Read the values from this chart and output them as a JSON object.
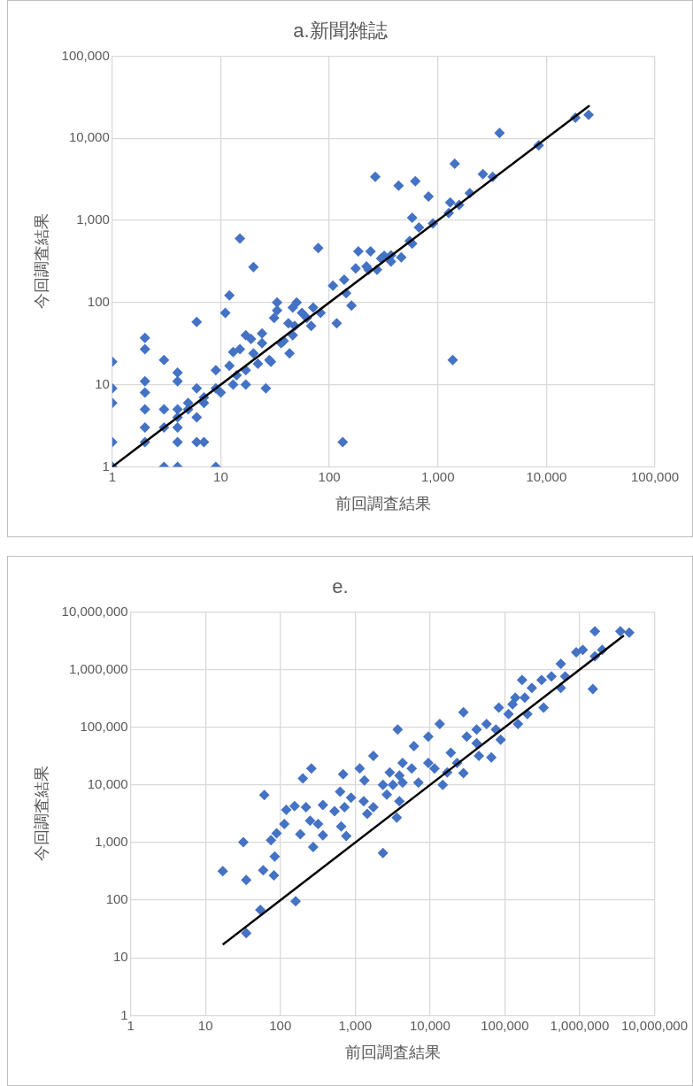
{
  "chart_data": [
    {
      "type": "scatter",
      "title": "a.新聞雑誌",
      "xlabel": "前回調査結果",
      "ylabel": "今回調査結果",
      "log": "xy",
      "grid": true,
      "marker": "diamond",
      "xlim": [
        1,
        100000
      ],
      "ylim": [
        1,
        100000
      ],
      "xticks": [
        1,
        10,
        100,
        {
          "value": 1000,
          "label": "1,000"
        },
        {
          "value": 10000,
          "label": "10,000"
        },
        {
          "value": 100000,
          "label": "100,000"
        }
      ],
      "yticks": [
        1,
        10,
        100,
        {
          "value": 1000,
          "label": "1,000"
        },
        {
          "value": 10000,
          "label": "10,000"
        },
        {
          "value": 100000,
          "label": "100,000"
        }
      ],
      "series": [
        {
          "color": "#4472c4",
          "x": [
            1,
            1,
            1,
            1,
            1,
            1,
            2,
            2,
            2,
            2,
            2,
            2,
            2,
            3,
            4,
            9,
            3,
            3,
            3,
            4,
            4,
            4,
            4,
            4,
            6,
            7,
            6,
            5,
            6,
            6,
            7,
            9,
            9,
            10,
            11,
            12,
            15,
            20,
            13,
            13,
            17,
            17,
            26,
            20,
            24,
            22,
            29,
            33,
            33,
            38,
            43,
            50,
            56,
            48,
            68,
            83,
            117,
            108,
            79,
            160,
            175,
            240,
            265,
            133,
            143,
            230,
            320,
            435,
            620,
            820,
            1430,
            3700,
            1370,
            8500,
            18500,
            24500,
            2600,
            3200,
            1970,
            1570,
            1300,
            1260,
            900,
            670,
            580,
            550,
            580,
            460,
            370,
            300,
            275,
            137,
            185,
            220,
            370,
            12,
            15,
            19,
            24,
            31,
            42,
            46,
            62,
            71,
            14,
            17,
            28,
            36,
            46,
            7,
            5,
            4
          ],
          "values": [
            1,
            2,
            6,
            9,
            19,
            1,
            2,
            3,
            5,
            8,
            11,
            27,
            37,
            1,
            1,
            1,
            5,
            3,
            20,
            2,
            3,
            5,
            14,
            11,
            2,
            2,
            4,
            6,
            58,
            9,
            6,
            15,
            9,
            8,
            75,
            122,
            600,
            270,
            10,
            25,
            10,
            40,
            9,
            24,
            32,
            18,
            19,
            100,
            80,
            34,
            24,
            100,
            75,
            52,
            52,
            75,
            56,
            160,
            460,
            92,
            260,
            420,
            3400,
            2,
            130,
            250,
            370,
            2650,
            3000,
            1950,
            4900,
            11600,
            20,
            8200,
            17800,
            19300,
            3650,
            3400,
            2150,
            1540,
            1650,
            1230,
            915,
            820,
            1080,
            560,
            520,
            355,
            375,
            345,
            250,
            190,
            420,
            275,
            315,
            17,
            27,
            36,
            42,
            65,
            56,
            87,
            65,
            87,
            13,
            15,
            20,
            32,
            40,
            7,
            5,
            4
          ]
        },
        {
          "type": "line",
          "marker": "none",
          "color": "#000000",
          "x": [
            1,
            25000
          ],
          "values": [
            1,
            25000
          ]
        }
      ]
    },
    {
      "type": "scatter",
      "title": "e.",
      "xlabel": "前回調査結果",
      "ylabel": "今回調査結果",
      "log": "xy",
      "grid": true,
      "marker": "diamond",
      "xlim": [
        1,
        10000000
      ],
      "ylim": [
        1,
        10000000
      ],
      "xticks": [
        1,
        10,
        100,
        {
          "value": 1000,
          "label": "1,000"
        },
        {
          "value": 10000,
          "label": "10,000"
        },
        {
          "value": 100000,
          "label": "100,000"
        },
        {
          "value": 1000000,
          "label": "1,000,000"
        },
        {
          "value": 10000000,
          "label": "10,000,000"
        }
      ],
      "yticks": [
        1,
        10,
        100,
        {
          "value": 1000,
          "label": "1,000"
        },
        {
          "value": 10000,
          "label": "10,000"
        },
        {
          "value": 100000,
          "label": "100,000"
        },
        {
          "value": 1000000,
          "label": "1,000,000"
        },
        {
          "value": 10000000,
          "label": "10,000,000"
        }
      ],
      "series": [
        {
          "color": "#4472c4",
          "x": [
            17,
            35,
            35,
            32,
            54,
            59,
            82,
            84,
            61,
            75,
            89,
            113,
            120,
            155,
            160,
            185,
            200,
            260,
            220,
            275,
            250,
            320,
            370,
            370,
            530,
            690,
            630,
            720,
            650,
            760,
            880,
            1150,
            1330,
            1450,
            1750,
            1750,
            2350,
            3700,
            3600,
            2900,
            2650,
            1300,
            4300,
            4300,
            2350,
            3900,
            6100,
            9500,
            13500,
            14800,
            9500,
            5700,
            3900,
            3200,
            7000,
            11500,
            19000,
            17000,
            28000,
            28000,
            23000,
            31000,
            42000,
            45000,
            66000,
            42000,
            57000,
            83000,
            88000,
            76000,
            112000,
            138000,
            150000,
            170000,
            185000,
            230000,
            310000,
            330000,
            200000,
            420000,
            560000,
            560000,
            640000,
            900000,
            1100000,
            1600000,
            1500000,
            1600000,
            2000000,
            3500000,
            4600000,
            127000
          ],
          "values": [
            320,
            27,
            225,
            1020,
            68,
            330,
            270,
            570,
            6700,
            1100,
            1450,
            2100,
            3700,
            4300,
            96,
            1400,
            13000,
            19300,
            4100,
            840,
            2400,
            2100,
            1340,
            4500,
            3500,
            15300,
            7600,
            4100,
            1900,
            1300,
            6000,
            19300,
            12000,
            3150,
            4100,
            32000,
            660,
            91000,
            2700,
            16500,
            6800,
            5200,
            11000,
            24000,
            10000,
            5200,
            47000,
            69000,
            114000,
            10000,
            24000,
            19300,
            14500,
            10000,
            11000,
            19300,
            36000,
            16500,
            182000,
            16000,
            24000,
            69000,
            91000,
            32000,
            30000,
            53000,
            114000,
            220000,
            61000,
            91000,
            170000,
            325000,
            114000,
            660000,
            325000,
            480000,
            660000,
            220000,
            170000,
            760000,
            1260000,
            480000,
            760000,
            2000000,
            2200000,
            4600000,
            460000,
            1700000,
            2200000,
            4600000,
            4400000,
            250000
          ]
        },
        {
          "type": "line",
          "marker": "none",
          "color": "#000000",
          "x": [
            17,
            3900000
          ],
          "values": [
            17,
            3900000
          ]
        }
      ]
    }
  ]
}
